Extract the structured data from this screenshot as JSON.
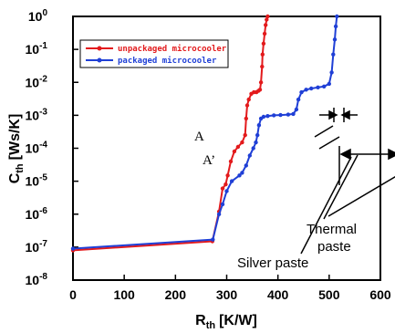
{
  "chart_data": {
    "type": "line",
    "xlabel": "R",
    "xlabel_sub": "th",
    "xlabel_unit": "[K/W]",
    "ylabel": "C",
    "ylabel_sub": "th",
    "ylabel_unit": "[Ws/K]",
    "x_scale": "linear",
    "y_scale": "log",
    "xlim": [
      0,
      600
    ],
    "ylim": [
      1e-08,
      1
    ],
    "x_ticks": [
      "0",
      "100",
      "200",
      "300",
      "400",
      "500",
      "600"
    ],
    "y_ticks": [
      {
        "base": "10",
        "exp": "0",
        "value": 1
      },
      {
        "base": "10",
        "exp": "-1",
        "value": 0.1
      },
      {
        "base": "10",
        "exp": "-2",
        "value": 0.01
      },
      {
        "base": "10",
        "exp": "-3",
        "value": 0.001
      },
      {
        "base": "10",
        "exp": "-4",
        "value": 0.0001
      },
      {
        "base": "10",
        "exp": "-5",
        "value": 1e-05
      },
      {
        "base": "10",
        "exp": "-6",
        "value": 1e-06
      },
      {
        "base": "10",
        "exp": "-7",
        "value": 1e-07
      },
      {
        "base": "10",
        "exp": "-8",
        "value": 1e-08
      }
    ],
    "legend_position": "top-left",
    "series": [
      {
        "name": "unpackaged microcooler",
        "color": "#e31a1c",
        "x": [
          0,
          272,
          285,
          292,
          298,
          302,
          308,
          315,
          322,
          330,
          336,
          338,
          340,
          343,
          348,
          353,
          358,
          362,
          365,
          367,
          369,
          370,
          372,
          374,
          376,
          378,
          380
        ],
        "y": [
          8e-08,
          1.5e-07,
          1.2e-06,
          6e-06,
          8e-06,
          1.5e-05,
          4e-05,
          8e-05,
          0.00011,
          0.00015,
          0.00025,
          0.0008,
          0.002,
          0.003,
          0.0045,
          0.005,
          0.005,
          0.0055,
          0.006,
          0.01,
          0.03,
          0.07,
          0.15,
          0.3,
          0.55,
          0.8,
          1
        ]
      },
      {
        "name": "packaged microcooler",
        "color": "#1f3fd6",
        "x": [
          0,
          273,
          285,
          292,
          300,
          310,
          325,
          330,
          338,
          345,
          352,
          357,
          360,
          363,
          367,
          372,
          380,
          392,
          405,
          420,
          430,
          436,
          440,
          446,
          455,
          465,
          478,
          490,
          500,
          505,
          508,
          511,
          513,
          515
        ],
        "y": [
          9e-08,
          1.7e-07,
          1e-06,
          2e-06,
          5e-06,
          1e-05,
          1.5e-05,
          1.8e-05,
          3e-05,
          6e-05,
          0.0001,
          0.00015,
          0.00025,
          0.0005,
          0.0008,
          0.0009,
          0.00095,
          0.001,
          0.00102,
          0.00105,
          0.0011,
          0.0015,
          0.003,
          0.005,
          0.006,
          0.0065,
          0.007,
          0.0075,
          0.009,
          0.02,
          0.07,
          0.2,
          0.5,
          1
        ]
      }
    ],
    "annotations": [
      {
        "text": "A"
      },
      {
        "text": "A’"
      },
      {
        "text": "Silver paste"
      },
      {
        "text": "Thermal"
      },
      {
        "text": "paste"
      }
    ]
  }
}
